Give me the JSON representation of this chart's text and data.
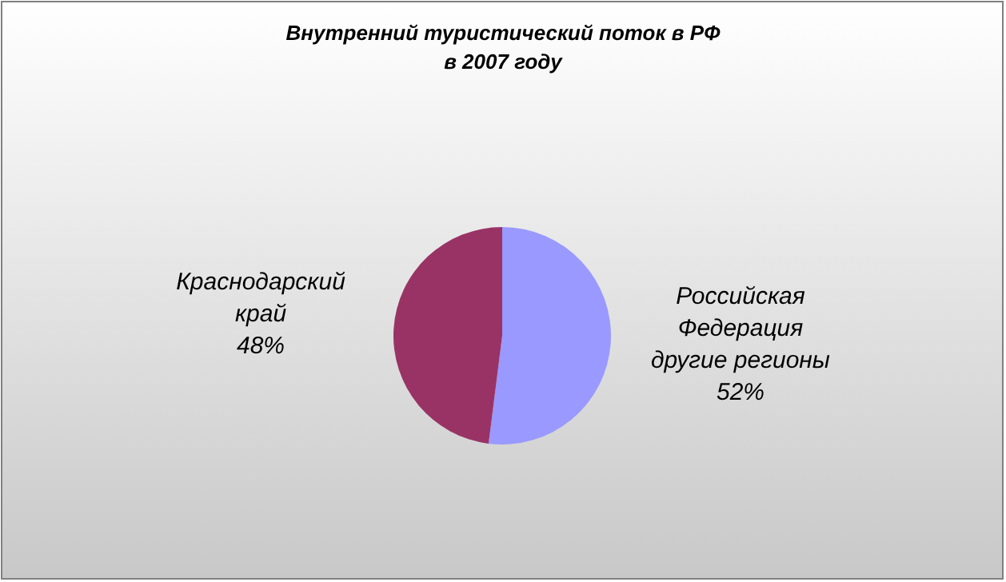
{
  "chart_data": {
    "type": "pie",
    "title": "Внутренний туристический поток в РФ\nв 2007 году",
    "categories": [
      "Российская\nФедерация\nдругие регионы",
      "Краснодарский\nкрай"
    ],
    "values": [
      52,
      48
    ],
    "colors": [
      "#9999ff",
      "#993366"
    ],
    "value_labels": [
      "52%",
      "48%"
    ]
  }
}
